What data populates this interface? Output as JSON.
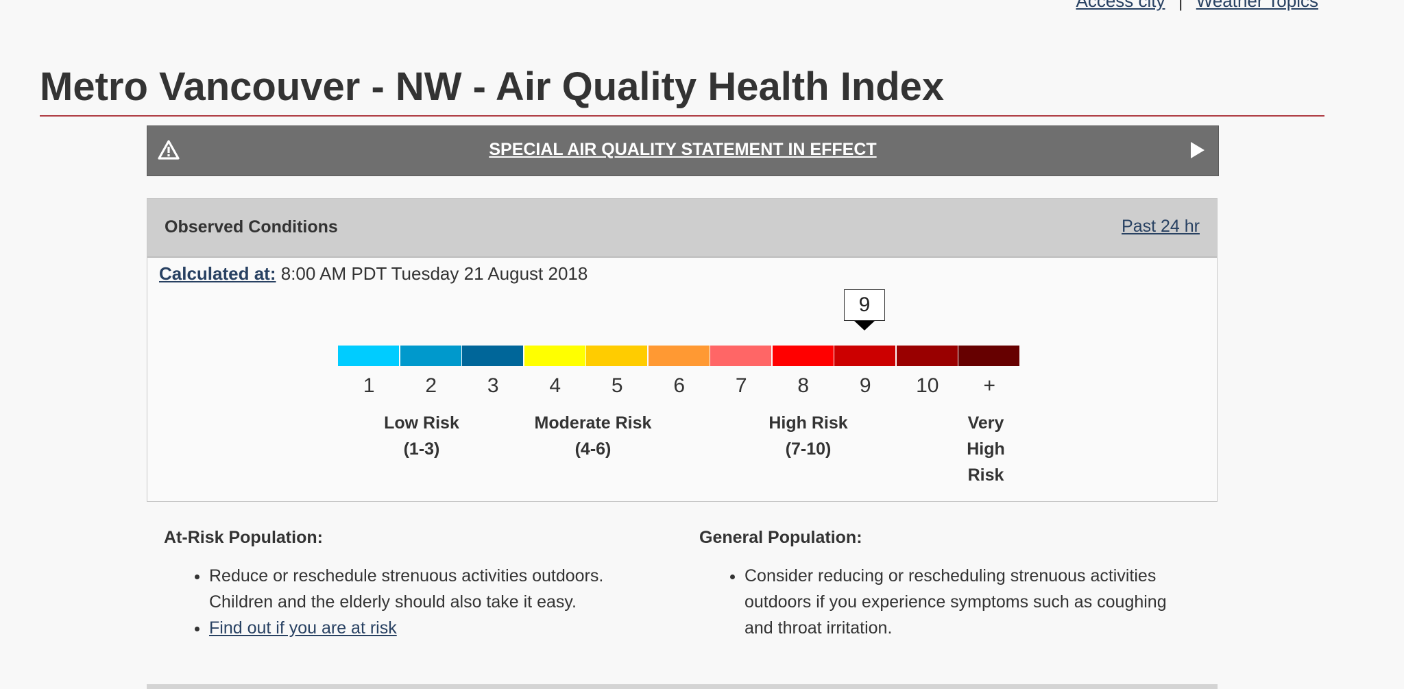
{
  "top_nav": {
    "link1": "Access city",
    "separator": "|",
    "link2": "Weather Topics"
  },
  "page_title": "Metro Vancouver - NW - Air Quality Health Index",
  "alert": {
    "text": "SPECIAL AIR QUALITY STATEMENT IN EFFECT",
    "icon": "warning-triangle-icon",
    "expand_icon": "play-arrow-icon"
  },
  "observed": {
    "title": "Observed Conditions",
    "past_link": "Past 24 hr",
    "calculated_label": "Calculated at:",
    "calculated_value": "8:00 AM PDT Tuesday 21 August 2018",
    "current_value": "9",
    "current_index": 8,
    "scale": [
      {
        "label": "1",
        "color": "#00ccff"
      },
      {
        "label": "2",
        "color": "#0099cc"
      },
      {
        "label": "3",
        "color": "#006699"
      },
      {
        "label": "4",
        "color": "#ffff00"
      },
      {
        "label": "5",
        "color": "#ffcc00"
      },
      {
        "label": "6",
        "color": "#ff9933"
      },
      {
        "label": "7",
        "color": "#ff6666"
      },
      {
        "label": "8",
        "color": "#ff0000"
      },
      {
        "label": "9",
        "color": "#cc0000"
      },
      {
        "label": "10",
        "color": "#990000"
      },
      {
        "label": "+",
        "color": "#660000"
      }
    ],
    "risk_categories": {
      "low_line1": "Low Risk",
      "low_line2": "(1-3)",
      "moderate_line1": "Moderate Risk",
      "moderate_line2": "(4-6)",
      "high_line1": "High Risk",
      "high_line2": "(7-10)",
      "very_high_line1": "Very",
      "very_high_line2": "High",
      "very_high_line3": "Risk"
    }
  },
  "advice": {
    "at_risk": {
      "heading": "At-Risk Population:",
      "item1_line1": "Reduce or reschedule strenuous activities outdoors.",
      "item1_line2": "Children and the elderly should also take it easy.",
      "item2_link": "Find out if you are at risk"
    },
    "general": {
      "heading": "General Population:",
      "item1_line1": "Consider reducing or rescheduling strenuous activities",
      "item1_line2": "outdoors if you experience symptoms such as coughing",
      "item1_line3": "and throat irritation."
    }
  }
}
